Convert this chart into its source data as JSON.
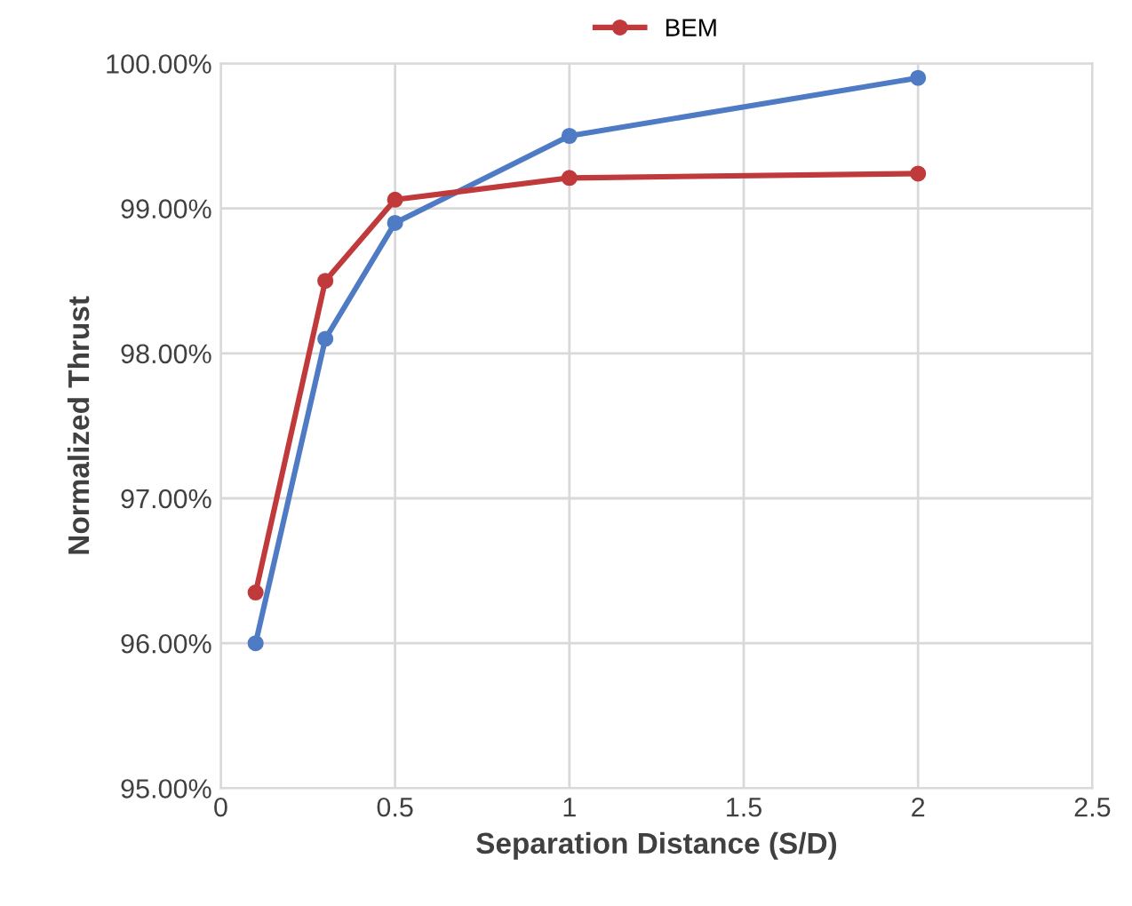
{
  "chart_data": {
    "type": "line",
    "xlabel": "Separation Distance (S/D)",
    "ylabel": "Normalized Thrust",
    "x": [
      0.1,
      0.3,
      0.5,
      1,
      2
    ],
    "series": [
      {
        "color": "#4f7bc4",
        "values": [
          96.0,
          98.1,
          98.9,
          99.5,
          99.9
        ]
      },
      {
        "name": "BEM",
        "color": "#c0393b",
        "values": [
          96.35,
          98.5,
          99.06,
          99.21,
          99.24
        ]
      }
    ],
    "xlim": [
      0,
      2.5
    ],
    "xticks": [
      0,
      0.5,
      1,
      1.5,
      2,
      2.5
    ],
    "ylim": [
      95,
      100
    ],
    "yticks": [
      {
        "value": 95,
        "label": "95.00%"
      },
      {
        "value": 96,
        "label": "96.00%"
      },
      {
        "value": 97,
        "label": "97.00%"
      },
      {
        "value": 98,
        "label": "98.00%"
      },
      {
        "value": 99,
        "label": "99.00%"
      },
      {
        "value": 100,
        "label": "100.00%"
      }
    ],
    "grid": true,
    "legend": "top",
    "marker": "circle",
    "line_style": "solid"
  }
}
